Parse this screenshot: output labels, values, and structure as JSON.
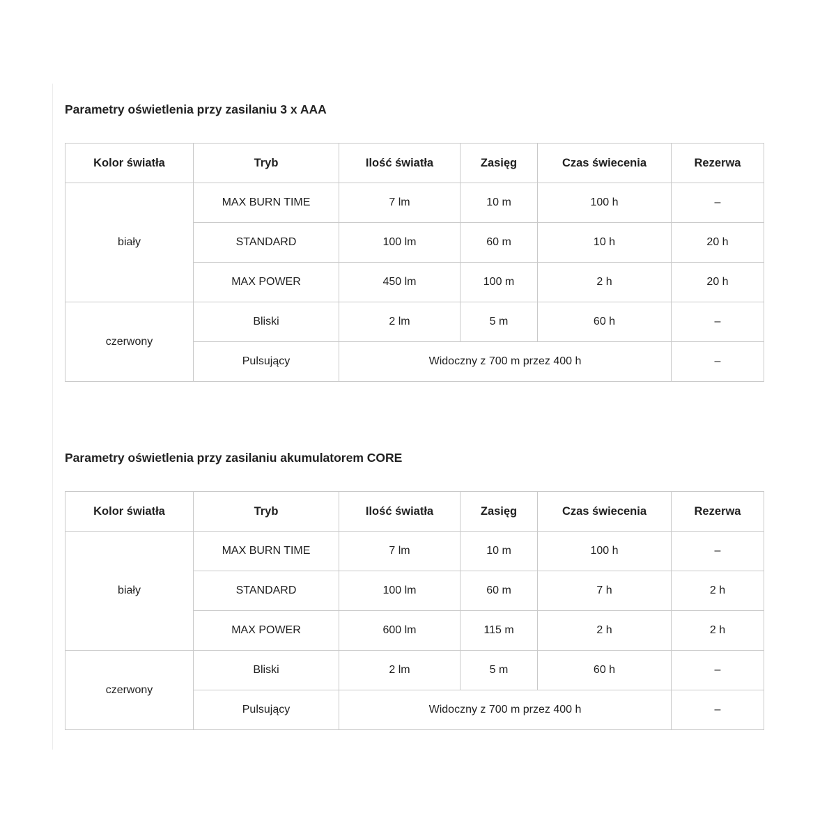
{
  "sections": [
    {
      "title": "Parametry oświetlenia przy zasilaniu 3 x AAA",
      "table": {
        "headers": [
          "Kolor światła",
          "Tryb",
          "Ilość światła",
          "Zasięg",
          "Czas świecenia",
          "Rezerwa"
        ],
        "groups": [
          {
            "color": "biały",
            "rows": [
              {
                "tryb": "MAX BURN TIME",
                "ilosc": "7 lm",
                "zasieg": "10 m",
                "czas": "100 h",
                "rezerwa": "–"
              },
              {
                "tryb": "STANDARD",
                "ilosc": "100 lm",
                "zasieg": "60 m",
                "czas": "10 h",
                "rezerwa": "20 h"
              },
              {
                "tryb": "MAX POWER",
                "ilosc": "450 lm",
                "zasieg": "100 m",
                "czas": "2 h",
                "rezerwa": "20 h"
              }
            ]
          },
          {
            "color": "czerwony",
            "rows": [
              {
                "tryb": "Bliski",
                "ilosc": "2 lm",
                "zasieg": "5 m",
                "czas": "60 h",
                "rezerwa": "–"
              },
              {
                "tryb": "Pulsujący",
                "merged": "Widoczny z 700 m przez 400 h",
                "rezerwa": "–"
              }
            ]
          }
        ]
      }
    },
    {
      "title": "Parametry oświetlenia przy zasilaniu akumulatorem CORE",
      "table": {
        "headers": [
          "Kolor światła",
          "Tryb",
          "Ilość światła",
          "Zasięg",
          "Czas świecenia",
          "Rezerwa"
        ],
        "groups": [
          {
            "color": "biały",
            "rows": [
              {
                "tryb": "MAX BURN TIME",
                "ilosc": "7 lm",
                "zasieg": "10 m",
                "czas": "100 h",
                "rezerwa": "–"
              },
              {
                "tryb": "STANDARD",
                "ilosc": "100 lm",
                "zasieg": "60 m",
                "czas": "7 h",
                "rezerwa": "2 h"
              },
              {
                "tryb": "MAX POWER",
                "ilosc": "600 lm",
                "zasieg": "115 m",
                "czas": "2 h",
                "rezerwa": "2 h"
              }
            ]
          },
          {
            "color": "czerwony",
            "rows": [
              {
                "tryb": "Bliski",
                "ilosc": "2 lm",
                "zasieg": "5 m",
                "czas": "60 h",
                "rezerwa": "–"
              },
              {
                "tryb": "Pulsujący",
                "merged": "Widoczny z 700 m przez 400 h",
                "rezerwa": "–"
              }
            ]
          }
        ]
      }
    }
  ],
  "colors": {
    "table_border": "#c9c9c9",
    "text": "#212121",
    "content_edge": "#ececec",
    "background": "#ffffff"
  }
}
